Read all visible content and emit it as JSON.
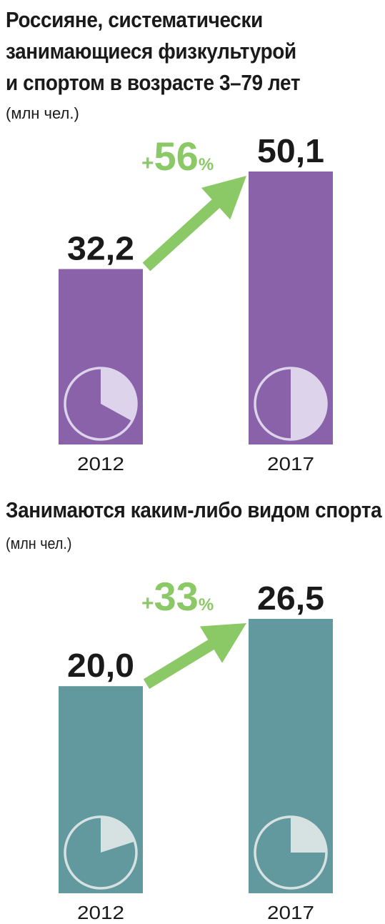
{
  "chart_data": [
    {
      "type": "bar",
      "title_lines": [
        "Россияне, систематически",
        "занимающиеся физкультурой",
        "и спортом в возрасте 3–79 лет"
      ],
      "unit": "(млн чел.)",
      "categories": [
        "2012",
        "2017"
      ],
      "values": [
        32.2,
        50.1
      ],
      "value_labels": [
        "32,2",
        "50,1"
      ],
      "change_label": {
        "sign": "+",
        "number": "56",
        "unit": "%"
      },
      "clock_fractions": [
        0.33,
        0.5
      ],
      "ylim": [
        0,
        50.1
      ],
      "colors": {
        "bar": "#8a62aa",
        "clock_fill": "#ddd3ea",
        "arrow": "#8bc866"
      }
    },
    {
      "type": "bar",
      "title_main": "Занимаются каким-либо видом спорта",
      "unit": "(млн чел.)",
      "categories": [
        "2012",
        "2017"
      ],
      "values": [
        20.0,
        26.5
      ],
      "value_labels": [
        "20,0",
        "26,5"
      ],
      "change_label": {
        "sign": "+",
        "number": "33",
        "unit": "%"
      },
      "clock_fractions": [
        0.2,
        0.25
      ],
      "ylim": [
        0,
        26.5
      ],
      "colors": {
        "bar": "#62999e",
        "clock_fill": "#d6e1e2",
        "arrow": "#8bc866"
      }
    }
  ]
}
